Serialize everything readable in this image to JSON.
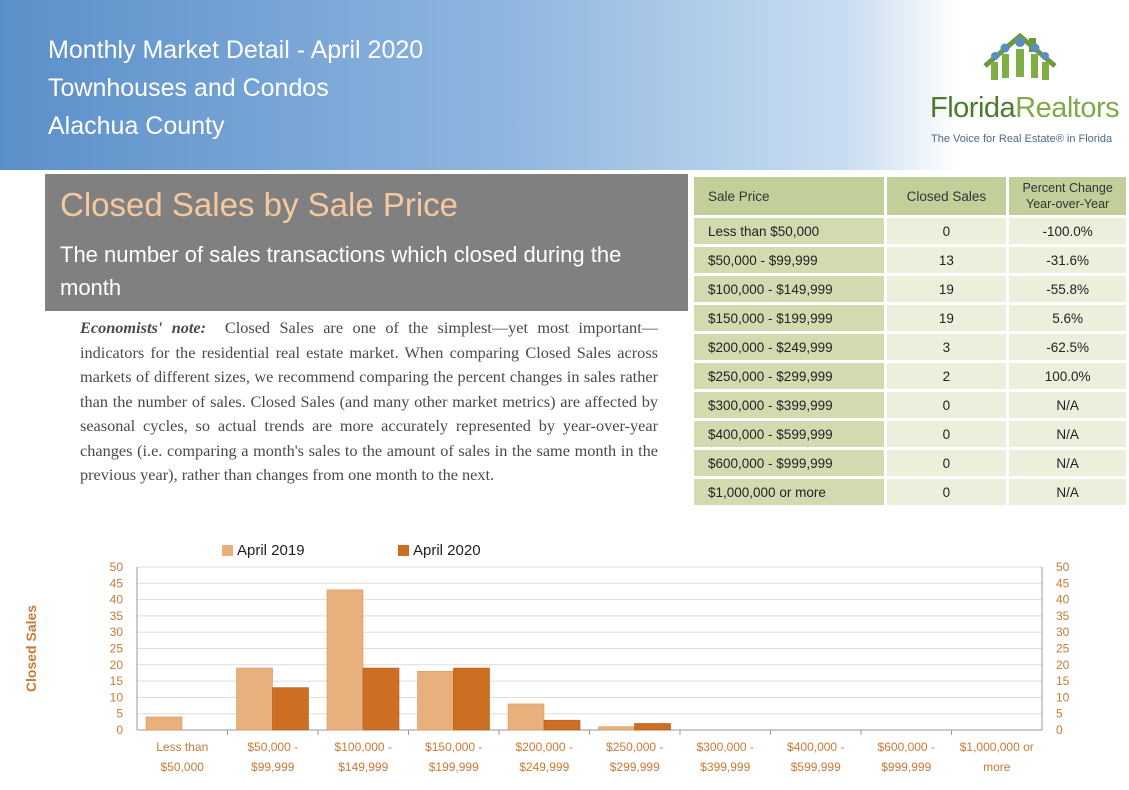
{
  "header": {
    "line1": "Monthly Market Detail - April 2020",
    "line2": "Townhouses and Condos",
    "line3": "Alachua County"
  },
  "logo": {
    "name_part1": "Florida",
    "name_part2": "Realtors",
    "tagline": "The Voice for Real Estate® in Florida",
    "icon": "people-house-logo-icon"
  },
  "section": {
    "title": "Closed Sales by Sale Price",
    "subtitle": "The number of sales transactions which closed during the month"
  },
  "note": {
    "label": "Economists' note:",
    "text": "Closed Sales are one of the simplest—yet most important—indicators for the residential real estate market. When comparing Closed Sales across markets of different sizes, we recommend comparing the percent changes in sales rather than the number of sales. Closed Sales (and many other market metrics) are affected by seasonal cycles, so actual trends are more accurately represented by year-over-year changes (i.e. comparing a month's sales to the amount of sales in the same month in the previous year), rather than changes from one month to the next."
  },
  "table": {
    "headers": [
      "Sale Price",
      "Closed Sales",
      "Percent Change Year-over-Year"
    ],
    "rows": [
      [
        "Less than $50,000",
        "0",
        "-100.0%"
      ],
      [
        "$50,000 - $99,999",
        "13",
        "-31.6%"
      ],
      [
        "$100,000 - $149,999",
        "19",
        "-55.8%"
      ],
      [
        "$150,000 - $199,999",
        "19",
        "5.6%"
      ],
      [
        "$200,000 - $249,999",
        "3",
        "-62.5%"
      ],
      [
        "$250,000 - $299,999",
        "2",
        "100.0%"
      ],
      [
        "$300,000 - $399,999",
        "0",
        "N/A"
      ],
      [
        "$400,000 - $599,999",
        "0",
        "N/A"
      ],
      [
        "$600,000 - $999,999",
        "0",
        "N/A"
      ],
      [
        "$1,000,000 or more",
        "0",
        "N/A"
      ]
    ]
  },
  "chart_data": {
    "type": "bar",
    "ylabel": "Closed Sales",
    "ylim": [
      0,
      50
    ],
    "yticks": [
      0,
      5,
      10,
      15,
      20,
      25,
      30,
      35,
      40,
      45,
      50
    ],
    "categories": [
      [
        "Less than",
        "$50,000"
      ],
      [
        "$50,000 -",
        "$99,999"
      ],
      [
        "$100,000 -",
        "$149,999"
      ],
      [
        "$150,000 -",
        "$199,999"
      ],
      [
        "$200,000 -",
        "$249,999"
      ],
      [
        "$250,000 -",
        "$299,999"
      ],
      [
        "$300,000 -",
        "$399,999"
      ],
      [
        "$400,000 -",
        "$599,999"
      ],
      [
        "$600,000 -",
        "$999,999"
      ],
      [
        "$1,000,000 or",
        "more"
      ]
    ],
    "series": [
      {
        "name": "April 2019",
        "color": "#e8b07c",
        "values": [
          4,
          19,
          43,
          18,
          8,
          1,
          0,
          0,
          0,
          0
        ]
      },
      {
        "name": "April 2020",
        "color": "#cc6f22",
        "values": [
          0,
          13,
          19,
          19,
          3,
          2,
          0,
          0,
          0,
          0
        ]
      }
    ],
    "grid": true,
    "legend": "top"
  }
}
